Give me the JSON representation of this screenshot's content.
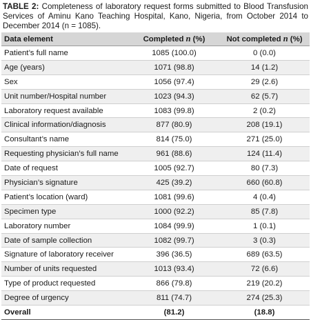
{
  "caption": {
    "label": "TABLE 2:",
    "text": "Completeness of laboratory request forms submitted to Blood Transfusion Services of Aminu Kano Teaching Hospital, Kano, Nigeria, from October 2014 to December 2014 (n = 1085)."
  },
  "table": {
    "headers": {
      "element": "Data element",
      "completed_prefix": "Completed ",
      "completed_n": "n",
      "completed_suffix": " (%)",
      "not_completed_prefix": "Not completed ",
      "not_completed_n": "n",
      "not_completed_suffix": " (%)"
    },
    "rows": [
      {
        "element": "Patient’s full name",
        "completed": "1085 (100.0)",
        "not_completed": "0 (0.0)"
      },
      {
        "element": "Age (years)",
        "completed": "1071 (98.8)",
        "not_completed": "14 (1.2)"
      },
      {
        "element": "Sex",
        "completed": "1056 (97.4)",
        "not_completed": "29 (2.6)"
      },
      {
        "element": "Unit number/Hospital number",
        "completed": "1023 (94.3)",
        "not_completed": "62 (5.7)"
      },
      {
        "element": "Laboratory request available",
        "completed": "1083 (99.8)",
        "not_completed": "2 (0.2)"
      },
      {
        "element": "Clinical information/diagnosis",
        "completed": "877 (80.9)",
        "not_completed": "208 (19.1)"
      },
      {
        "element": "Consultant’s name",
        "completed": "814 (75.0)",
        "not_completed": "271 (25.0)"
      },
      {
        "element": "Requesting physician’s full name",
        "completed": "961 (88.6)",
        "not_completed": "124 (11.4)"
      },
      {
        "element": "Date of request",
        "completed": "1005 (92.7)",
        "not_completed": "80 (7.3)"
      },
      {
        "element": "Physician’s signature",
        "completed": "425 (39.2)",
        "not_completed": "660 (60.8)"
      },
      {
        "element": "Patient’s location (ward)",
        "completed": "1081 (99.6)",
        "not_completed": "4 (0.4)"
      },
      {
        "element": "Specimen type",
        "completed": "1000 (92.2)",
        "not_completed": "85 (7.8)"
      },
      {
        "element": "Laboratory number",
        "completed": "1084 (99.9)",
        "not_completed": "1 (0.1)"
      },
      {
        "element": "Date of sample collection",
        "completed": "1082 (99.7)",
        "not_completed": "3 (0.3)"
      },
      {
        "element": "Signature of laboratory receiver",
        "completed": "396 (36.5)",
        "not_completed": "689 (63.5)"
      },
      {
        "element": "Number of units requested",
        "completed": "1013 (93.4)",
        "not_completed": "72 (6.6)"
      },
      {
        "element": "Type of product requested",
        "completed": "866 (79.8)",
        "not_completed": "219 (20.2)"
      },
      {
        "element": "Degree of urgency",
        "completed": "811 (74.7)",
        "not_completed": "274 (25.3)"
      }
    ],
    "overall": {
      "element": "Overall",
      "completed": "(81.2)",
      "not_completed": "(18.8)"
    }
  }
}
